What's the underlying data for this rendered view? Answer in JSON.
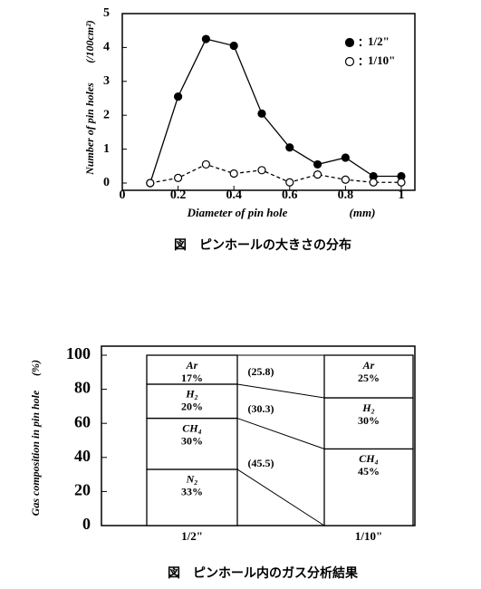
{
  "chart_data": [
    {
      "type": "line",
      "ylabel": "Number of pin holes",
      "ylabel_unit": "(/100cm²)",
      "xlabel": "Diameter of pin hole",
      "xlabel_unit": "(mm)",
      "caption": "図　ピンホールの大きさの分布",
      "x": [
        0.1,
        0.2,
        0.3,
        0.4,
        0.5,
        0.6,
        0.7,
        0.8,
        0.9,
        1.0
      ],
      "series": [
        {
          "name": "1/2\"",
          "color": "#000000",
          "marker": "filled",
          "line_style": "solid",
          "values": [
            0,
            2.55,
            4.25,
            4.05,
            2.05,
            1.05,
            0.55,
            0.75,
            0.2,
            0.2
          ]
        },
        {
          "name": "1/10\"",
          "color": "#000000",
          "marker": "open",
          "line_style": "dashed",
          "values": [
            0,
            0.15,
            0.55,
            0.28,
            0.38,
            0.02,
            0.25,
            0.1,
            0.02,
            0.02
          ]
        }
      ],
      "xlim": [
        0,
        1
      ],
      "xticks": [
        0,
        0.2,
        0.4,
        0.6,
        0.8,
        1
      ],
      "ylim": [
        0,
        5
      ],
      "yticks": [
        0,
        1,
        2,
        3,
        4,
        5
      ]
    },
    {
      "type": "stacked_bar",
      "ylabel": "Gas composition in pin hole",
      "ylabel_unit": "(%)",
      "caption": "図　ピンホール内のガス分析結果",
      "categories": [
        "1/2\"",
        "1/10\""
      ],
      "series": [
        {
          "name": "N₂",
          "values": [
            33,
            null
          ],
          "value_labels": [
            "33%",
            null
          ]
        },
        {
          "name": "CH₄",
          "values": [
            30,
            45
          ],
          "value_labels": [
            "30%",
            "45%"
          ]
        },
        {
          "name": "H₂",
          "values": [
            20,
            30
          ],
          "value_labels": [
            "20%",
            "30%"
          ]
        },
        {
          "name": "Ar",
          "values": [
            17,
            25
          ],
          "value_labels": [
            "17%",
            "25%"
          ]
        }
      ],
      "annotations": [
        "(25.8)",
        "(30.3)",
        "(45.5)"
      ],
      "ylim": [
        0,
        100
      ],
      "yticks": [
        0,
        20,
        40,
        60,
        80,
        100
      ]
    }
  ]
}
